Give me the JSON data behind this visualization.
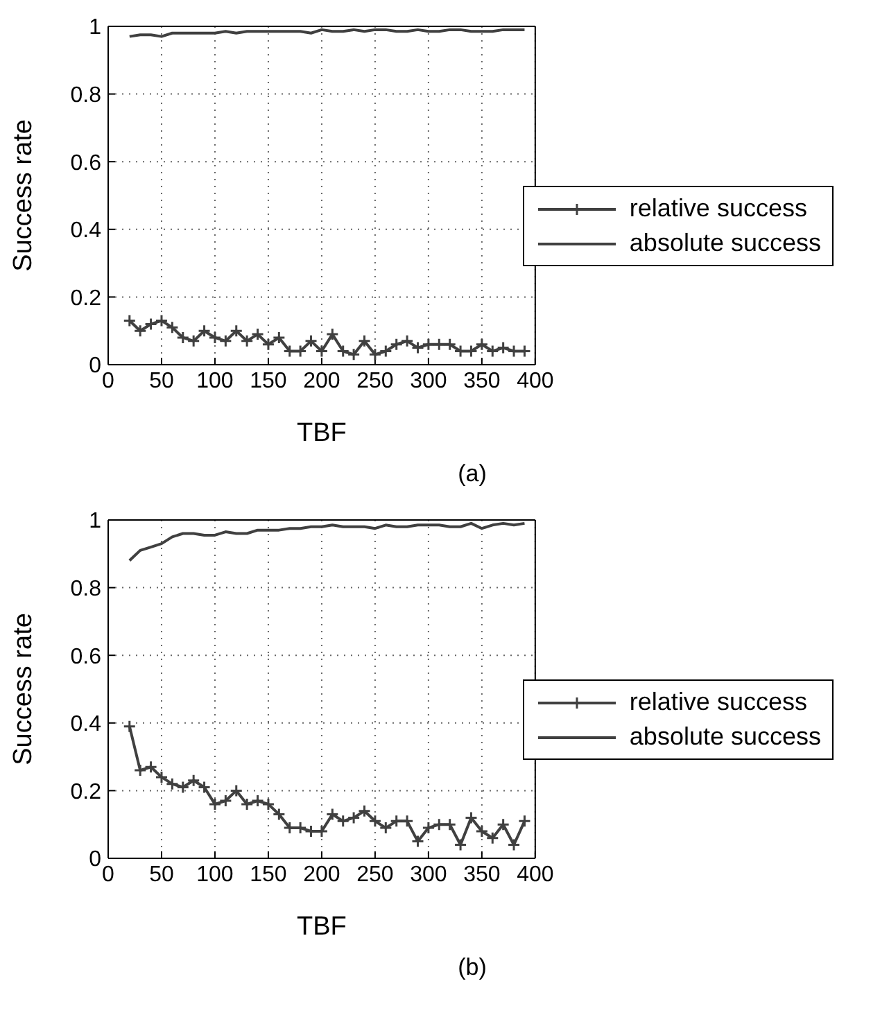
{
  "chart_data": [
    {
      "type": "line",
      "xlabel": "TBF",
      "ylabel": "Success rate",
      "annotations": [
        "(a)"
      ],
      "xlim": [
        0,
        400
      ],
      "xticks": [
        0,
        50,
        100,
        150,
        200,
        250,
        300,
        350,
        400
      ],
      "ylim": [
        0,
        1
      ],
      "yticks": [
        0,
        0.2,
        0.4,
        0.6,
        0.8,
        1
      ],
      "grid": true,
      "legend": "right",
      "line_style": "solid",
      "x": [
        20,
        30,
        40,
        50,
        60,
        70,
        80,
        90,
        100,
        110,
        120,
        130,
        140,
        150,
        160,
        170,
        180,
        190,
        200,
        210,
        220,
        230,
        240,
        250,
        260,
        270,
        280,
        290,
        300,
        310,
        320,
        330,
        340,
        350,
        360,
        370,
        380,
        390
      ],
      "series": [
        {
          "name": "relative success",
          "color": "#404040",
          "marker": "cross",
          "values": [
            0.13,
            0.1,
            0.12,
            0.13,
            0.11,
            0.08,
            0.07,
            0.1,
            0.08,
            0.07,
            0.1,
            0.07,
            0.09,
            0.06,
            0.08,
            0.04,
            0.04,
            0.07,
            0.04,
            0.09,
            0.04,
            0.03,
            0.07,
            0.03,
            0.04,
            0.06,
            0.07,
            0.05,
            0.06,
            0.06,
            0.06,
            0.04,
            0.04,
            0.06,
            0.04,
            0.05,
            0.04,
            0.04
          ]
        },
        {
          "name": "absolute success",
          "color": "#404040",
          "marker": "none",
          "values": [
            0.97,
            0.975,
            0.975,
            0.97,
            0.98,
            0.98,
            0.98,
            0.98,
            0.98,
            0.985,
            0.98,
            0.985,
            0.985,
            0.985,
            0.985,
            0.985,
            0.985,
            0.98,
            0.99,
            0.985,
            0.985,
            0.99,
            0.985,
            0.99,
            0.99,
            0.985,
            0.985,
            0.99,
            0.985,
            0.985,
            0.99,
            0.99,
            0.985,
            0.985,
            0.985,
            0.99,
            0.99,
            0.99
          ]
        }
      ]
    },
    {
      "type": "line",
      "xlabel": "TBF",
      "ylabel": "Success rate",
      "annotations": [
        "(b)"
      ],
      "xlim": [
        0,
        400
      ],
      "xticks": [
        0,
        50,
        100,
        150,
        200,
        250,
        300,
        350,
        400
      ],
      "ylim": [
        0,
        1
      ],
      "yticks": [
        0,
        0.2,
        0.4,
        0.6,
        0.8,
        1
      ],
      "grid": true,
      "legend": "right",
      "line_style": "solid",
      "x": [
        20,
        30,
        40,
        50,
        60,
        70,
        80,
        90,
        100,
        110,
        120,
        130,
        140,
        150,
        160,
        170,
        180,
        190,
        200,
        210,
        220,
        230,
        240,
        250,
        260,
        270,
        280,
        290,
        300,
        310,
        320,
        330,
        340,
        350,
        360,
        370,
        380,
        390
      ],
      "series": [
        {
          "name": "relative success",
          "color": "#404040",
          "marker": "cross",
          "values": [
            0.39,
            0.26,
            0.27,
            0.24,
            0.22,
            0.21,
            0.23,
            0.21,
            0.16,
            0.17,
            0.2,
            0.16,
            0.17,
            0.16,
            0.13,
            0.09,
            0.09,
            0.08,
            0.08,
            0.13,
            0.11,
            0.12,
            0.14,
            0.11,
            0.09,
            0.11,
            0.11,
            0.05,
            0.09,
            0.1,
            0.1,
            0.04,
            0.12,
            0.08,
            0.06,
            0.1,
            0.04,
            0.11
          ]
        },
        {
          "name": "absolute success",
          "color": "#404040",
          "marker": "none",
          "values": [
            0.88,
            0.91,
            0.92,
            0.93,
            0.95,
            0.96,
            0.96,
            0.955,
            0.955,
            0.965,
            0.96,
            0.96,
            0.97,
            0.97,
            0.97,
            0.975,
            0.975,
            0.98,
            0.98,
            0.985,
            0.98,
            0.98,
            0.98,
            0.975,
            0.985,
            0.98,
            0.98,
            0.985,
            0.985,
            0.985,
            0.98,
            0.98,
            0.99,
            0.975,
            0.985,
            0.99,
            0.985,
            0.99
          ]
        }
      ]
    }
  ]
}
